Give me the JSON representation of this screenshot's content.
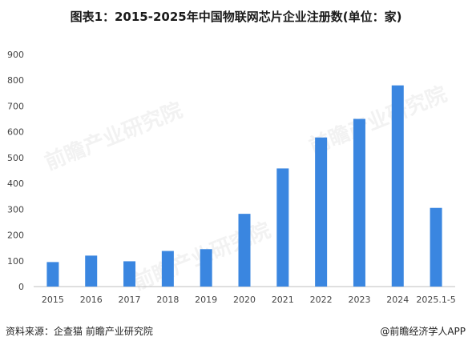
{
  "title": "图表1：2015-2025年中国物联网芯片企业注册数(单位：家)",
  "footer": {
    "source": "资料来源：企查猫 前瞻产业研究院",
    "brand": "@前瞻经济学人APP"
  },
  "colors": {
    "bar": "#3a86e0",
    "axis": "#bfbfbf",
    "text": "#444444"
  },
  "chart_data": {
    "type": "bar",
    "title": "图表1：2015-2025年中国物联网芯片企业注册数(单位：家)",
    "categories": [
      "2015",
      "2016",
      "2017",
      "2018",
      "2019",
      "2020",
      "2021",
      "2022",
      "2023",
      "2024",
      "2025.1-5"
    ],
    "values": [
      95,
      120,
      98,
      138,
      145,
      282,
      458,
      578,
      650,
      780,
      305
    ],
    "xlabel": "",
    "ylabel": "",
    "ylim": [
      0,
      900
    ],
    "yticks": [
      0,
      100,
      200,
      300,
      400,
      500,
      600,
      700,
      800,
      900
    ],
    "grid": false,
    "legend": "none"
  }
}
